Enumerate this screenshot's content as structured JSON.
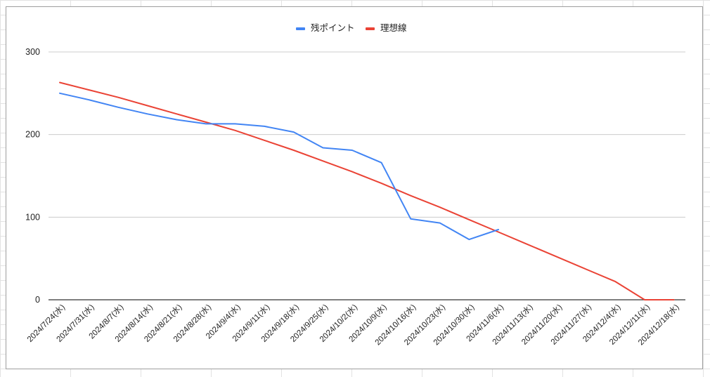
{
  "chart_data": {
    "type": "line",
    "title": "",
    "xlabel": "",
    "ylabel": "",
    "ylim": [
      0,
      300
    ],
    "yticks": [
      "0",
      "100",
      "200",
      "300"
    ],
    "grid": true,
    "legend_position": "top-center",
    "categories": [
      "2024/7/24(水)",
      "2024/7/31(水)",
      "2024/8/7(水)",
      "2024/8/14(水)",
      "2024/8/21(水)",
      "2024/8/28(水)",
      "2024/9/4(水)",
      "2024/9/11(水)",
      "2024/9/18(水)",
      "2024/9/25(水)",
      "2024/10/2(水)",
      "2024/10/9(水)",
      "2024/10/16(水)",
      "2024/10/23(水)",
      "2024/10/30(水)",
      "2024/11/6(水)",
      "2024/11/13(水)",
      "2024/11/20(水)",
      "2024/11/27(水)",
      "2024/12/4(水)",
      "2024/12/11(水)",
      "2024/12/18(水)"
    ],
    "series": [
      {
        "name": "残ポイント",
        "color": "#4285f4",
        "values": [
          250,
          242,
          233,
          225,
          218,
          213,
          213,
          210,
          203,
          184,
          181,
          166,
          98,
          93,
          73,
          85,
          null,
          null,
          null,
          null,
          null,
          null
        ]
      },
      {
        "name": "理想線",
        "color": "#ea4335",
        "values": [
          263,
          254,
          245,
          235,
          225,
          215,
          205,
          193,
          181,
          168,
          155,
          141,
          126,
          112,
          97,
          82,
          67,
          52,
          37,
          22,
          0,
          0
        ]
      }
    ]
  }
}
